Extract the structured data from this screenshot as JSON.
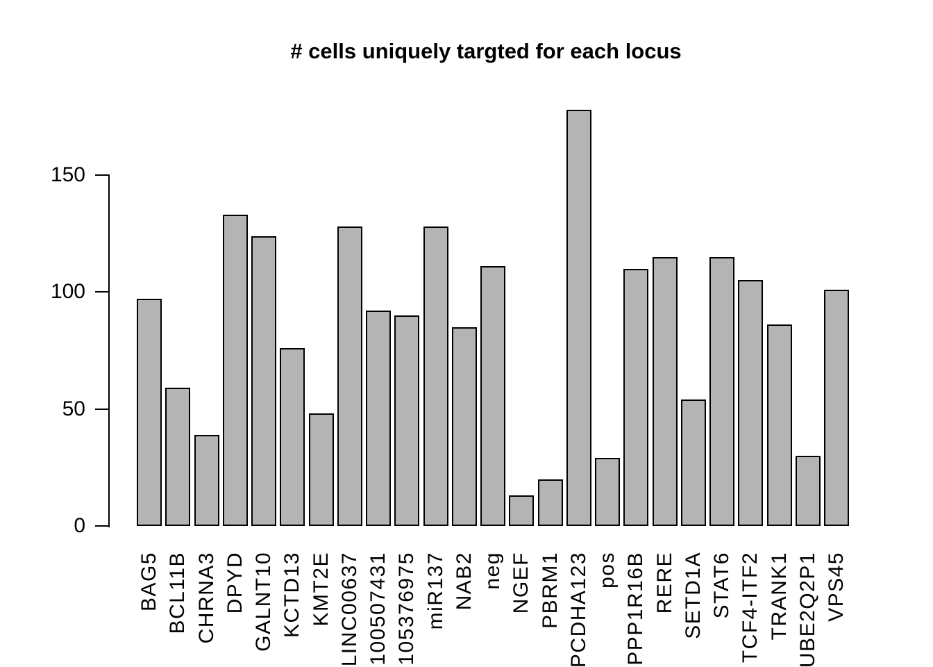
{
  "chart_data": {
    "type": "bar",
    "title": "# cells uniquely targted for each locus",
    "xlabel": "",
    "ylabel": "",
    "categories": [
      "BAG5",
      "BCL11B",
      "CHRNA3",
      "DPYD",
      "GALNT10",
      "KCTD13",
      "KMT2E",
      "LINC00637",
      "100507431",
      "105376975",
      "miR137",
      "NAB2",
      "neg",
      "NGEF",
      "PBRM1",
      "PCDHA123",
      "pos",
      "PPP1R16B",
      "RERE",
      "SETD1A",
      "STAT6",
      "TCF4-ITF2",
      "TRANK1",
      "UBE2Q2P1",
      "VPS45"
    ],
    "values": [
      97,
      59,
      39,
      133,
      124,
      76,
      48,
      128,
      92,
      90,
      128,
      85,
      111,
      13,
      20,
      178,
      29,
      110,
      115,
      54,
      115,
      105,
      86,
      30,
      101
    ],
    "yticks": [
      0,
      50,
      100,
      150
    ],
    "ylim": [
      0,
      150
    ],
    "grid": false,
    "legend": null,
    "orientation": "vertical",
    "bar_fill": "#b4b4b4",
    "bar_border": "#000000",
    "background": "#ffffff",
    "text_color": "#000000"
  }
}
